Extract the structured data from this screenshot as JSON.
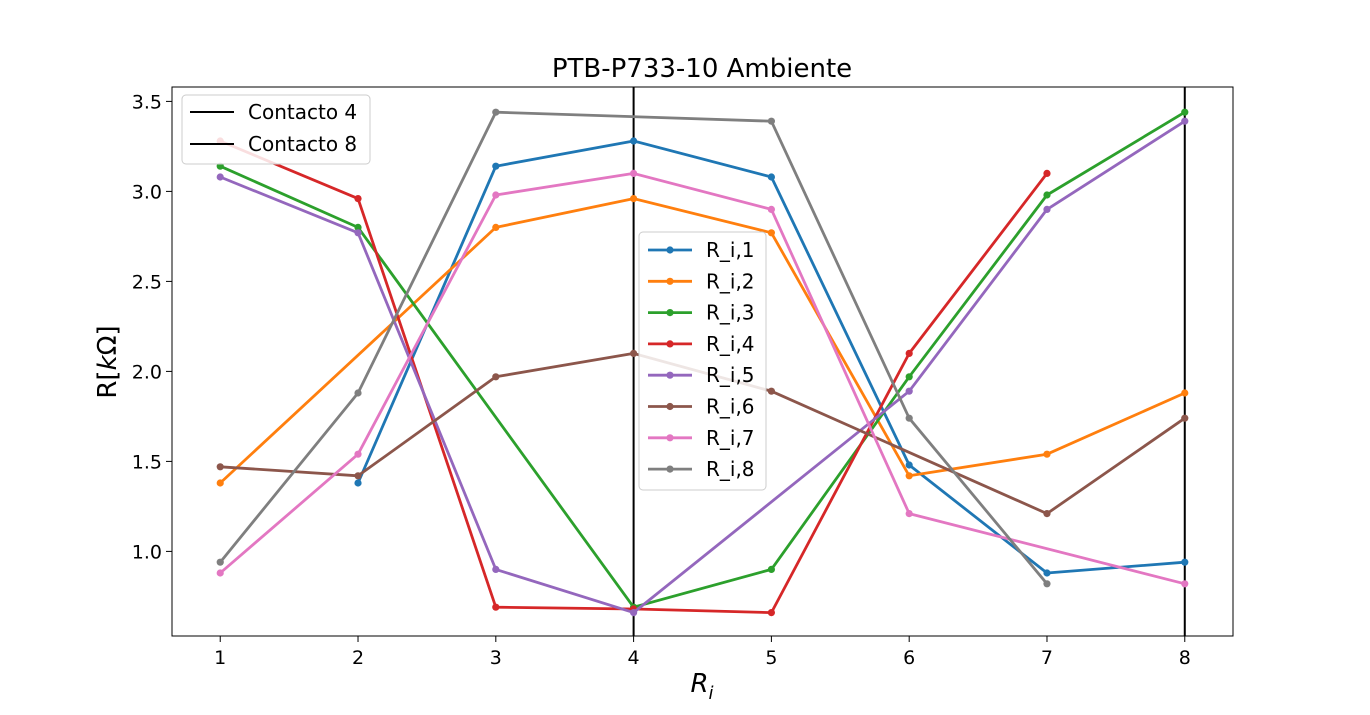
{
  "chart_data": {
    "type": "line",
    "title": "PTB-P733-10 Ambiente",
    "xlabel": "R",
    "xlabel_sub": "i",
    "ylabel_prefix": "R[",
    "ylabel_k": "k",
    "ylabel_suffix": "Ω]",
    "xlim": [
      0.65,
      8.35
    ],
    "ylim": [
      0.53,
      3.58
    ],
    "x_ticks": [
      1,
      2,
      3,
      4,
      5,
      6,
      7,
      8
    ],
    "y_ticks": [
      1.0,
      1.5,
      2.0,
      2.5,
      3.0,
      3.5
    ],
    "y_tick_labels": [
      "1.0",
      "1.5",
      "2.0",
      "2.5",
      "3.0",
      "3.5"
    ],
    "grid": false,
    "vlines": [
      {
        "name": "Contacto 4",
        "x": 4,
        "color": "#000000"
      },
      {
        "name": "Contacto 8",
        "x": 8,
        "color": "#000000"
      }
    ],
    "vline_legend_placement": "top-left",
    "series_legend_placement": "center",
    "series": [
      {
        "name": "R_i,1",
        "color": "#1f77b4",
        "x": [
          2,
          3,
          4,
          5,
          6,
          7,
          8
        ],
        "y": [
          1.38,
          3.14,
          3.28,
          3.08,
          1.48,
          0.88,
          0.94
        ]
      },
      {
        "name": "R_i,2",
        "color": "#ff7f0e",
        "x": [
          1,
          3,
          4,
          5,
          6,
          7,
          8
        ],
        "y": [
          1.38,
          2.8,
          2.96,
          2.77,
          1.42,
          1.54,
          1.88
        ]
      },
      {
        "name": "R_i,3",
        "color": "#2ca02c",
        "x": [
          1,
          2,
          4,
          5,
          6,
          7,
          8
        ],
        "y": [
          3.14,
          2.8,
          0.69,
          0.9,
          1.97,
          2.98,
          3.44
        ]
      },
      {
        "name": "R_i,4",
        "color": "#d62728",
        "x": [
          1,
          2,
          3,
          4,
          5,
          6,
          7
        ],
        "y": [
          3.28,
          2.96,
          0.69,
          0.68,
          0.66,
          2.1,
          3.1
        ]
      },
      {
        "name": "R_i,5",
        "color": "#9467bd",
        "x": [
          1,
          2,
          3,
          4,
          6,
          7,
          8
        ],
        "y": [
          3.08,
          2.77,
          0.9,
          0.66,
          1.89,
          2.9,
          3.39
        ]
      },
      {
        "name": "R_i,6",
        "color": "#8c564b",
        "x": [
          1,
          2,
          3,
          4,
          5,
          7,
          8
        ],
        "y": [
          1.47,
          1.42,
          1.97,
          2.1,
          1.89,
          1.21,
          1.74
        ]
      },
      {
        "name": "R_i,7",
        "color": "#e377c2",
        "x": [
          1,
          2,
          3,
          4,
          5,
          6,
          8
        ],
        "y": [
          0.88,
          1.54,
          2.98,
          3.1,
          2.9,
          1.21,
          0.82
        ]
      },
      {
        "name": "R_i,8",
        "color": "#7f7f7f",
        "x": [
          1,
          2,
          3,
          5,
          6,
          7
        ],
        "y": [
          0.94,
          1.88,
          3.44,
          3.39,
          1.74,
          0.82
        ]
      }
    ]
  }
}
